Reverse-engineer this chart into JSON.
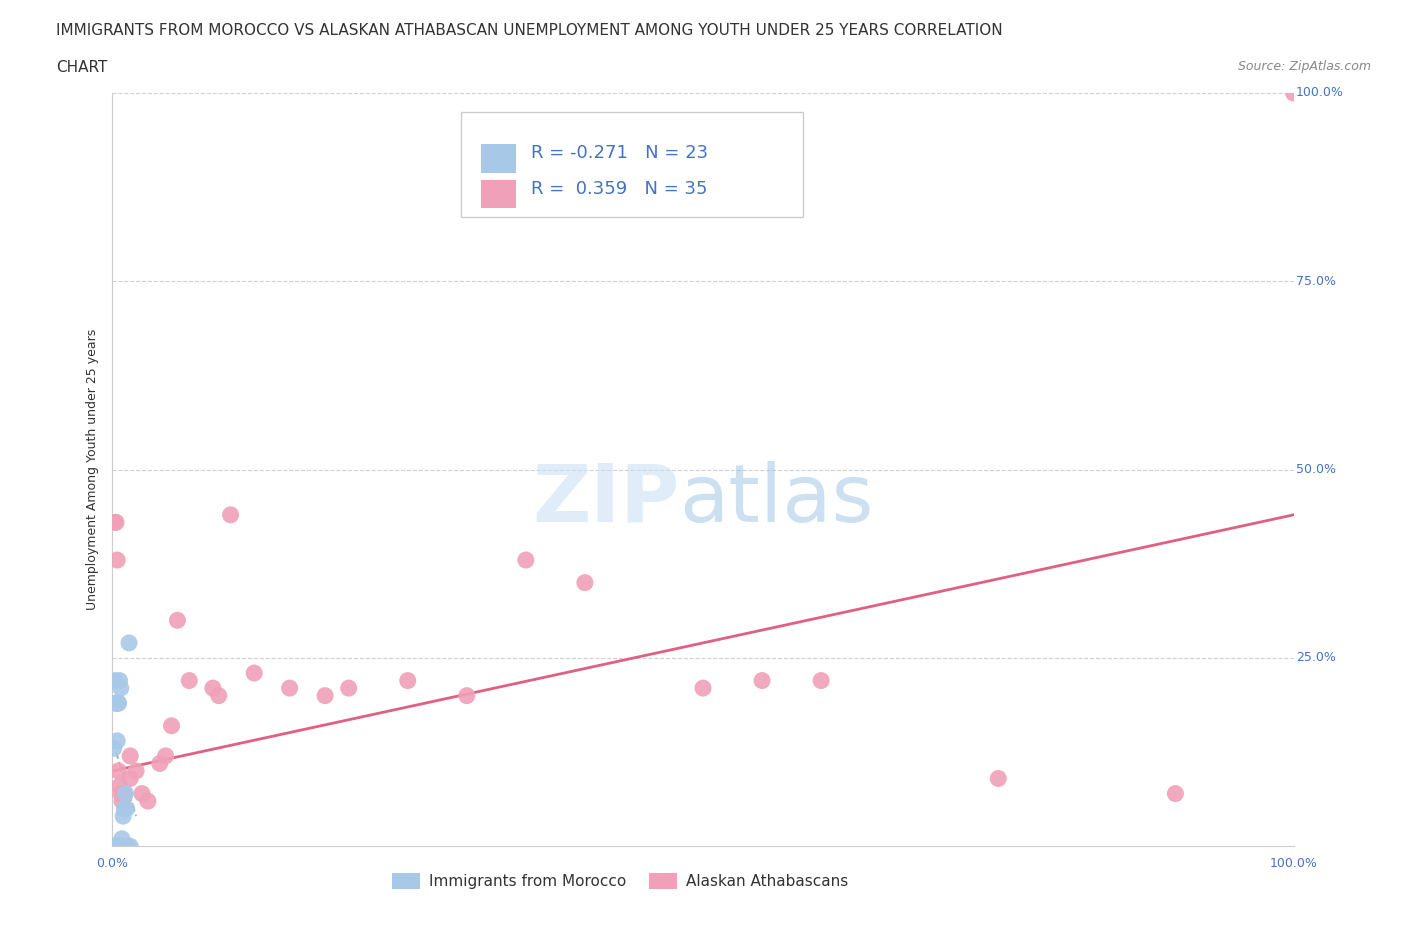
{
  "title_line1": "IMMIGRANTS FROM MOROCCO VS ALASKAN ATHABASCAN UNEMPLOYMENT AMONG YOUTH UNDER 25 YEARS CORRELATION",
  "title_line2": "CHART",
  "source": "Source: ZipAtlas.com",
  "ylabel": "Unemployment Among Youth under 25 years",
  "xlim": [
    0,
    1
  ],
  "ylim": [
    0,
    1
  ],
  "yticks": [
    0,
    0.25,
    0.5,
    0.75,
    1.0
  ],
  "ytick_labels": [
    "",
    "25.0%",
    "50.0%",
    "75.0%",
    "100.0%"
  ],
  "color_blue": "#a8c8e8",
  "color_pink": "#f0a0b8",
  "color_line_pink": "#e06080",
  "color_line_blue": "#b0b0b0",
  "color_title": "#333333",
  "color_axis_blue": "#4472c4",
  "color_legend_text": "#4472c4",
  "color_grid": "#d0d0d0",
  "morocco_x": [
    0.001,
    0.001,
    0.002,
    0.002,
    0.003,
    0.003,
    0.003,
    0.004,
    0.004,
    0.005,
    0.005,
    0.005,
    0.006,
    0.006,
    0.006,
    0.007,
    0.007,
    0.007,
    0.008,
    0.008,
    0.009,
    0.01,
    0.011,
    0.011,
    0.012,
    0.013,
    0.014,
    0.015
  ],
  "morocco_y": [
    0.0,
    0.13,
    0.0,
    0.22,
    0.0,
    0.19,
    0.19,
    0.0,
    0.14,
    0.0,
    0.19,
    0.19,
    0.0,
    0.0,
    0.22,
    0.0,
    0.0,
    0.21,
    0.01,
    0.0,
    0.04,
    0.05,
    0.07,
    0.0,
    0.05,
    0.0,
    0.27,
    0.0
  ],
  "athabascan_x": [
    0.002,
    0.003,
    0.004,
    0.005,
    0.006,
    0.007,
    0.008,
    0.01,
    0.015,
    0.015,
    0.02,
    0.025,
    0.03,
    0.04,
    0.045,
    0.05,
    0.055,
    0.065,
    0.085,
    0.09,
    0.1,
    0.12,
    0.15,
    0.18,
    0.2,
    0.25,
    0.3,
    0.35,
    0.4,
    0.5,
    0.55,
    0.6,
    0.75,
    0.9,
    1.0
  ],
  "athabascan_y": [
    0.43,
    0.43,
    0.38,
    0.1,
    0.08,
    0.07,
    0.06,
    0.07,
    0.12,
    0.09,
    0.1,
    0.07,
    0.06,
    0.11,
    0.12,
    0.16,
    0.3,
    0.22,
    0.21,
    0.2,
    0.44,
    0.23,
    0.21,
    0.2,
    0.21,
    0.22,
    0.2,
    0.38,
    0.35,
    0.21,
    0.22,
    0.22,
    0.09,
    0.07,
    1.0
  ],
  "pink_line_x": [
    0.0,
    1.0
  ],
  "pink_line_y": [
    0.1,
    0.44
  ],
  "blue_line_x": [
    0.0,
    0.02
  ],
  "blue_line_y": [
    0.14,
    0.04
  ],
  "title_fontsize": 11,
  "axis_label_fontsize": 9,
  "tick_fontsize": 9,
  "legend_fontsize": 13,
  "source_fontsize": 9
}
